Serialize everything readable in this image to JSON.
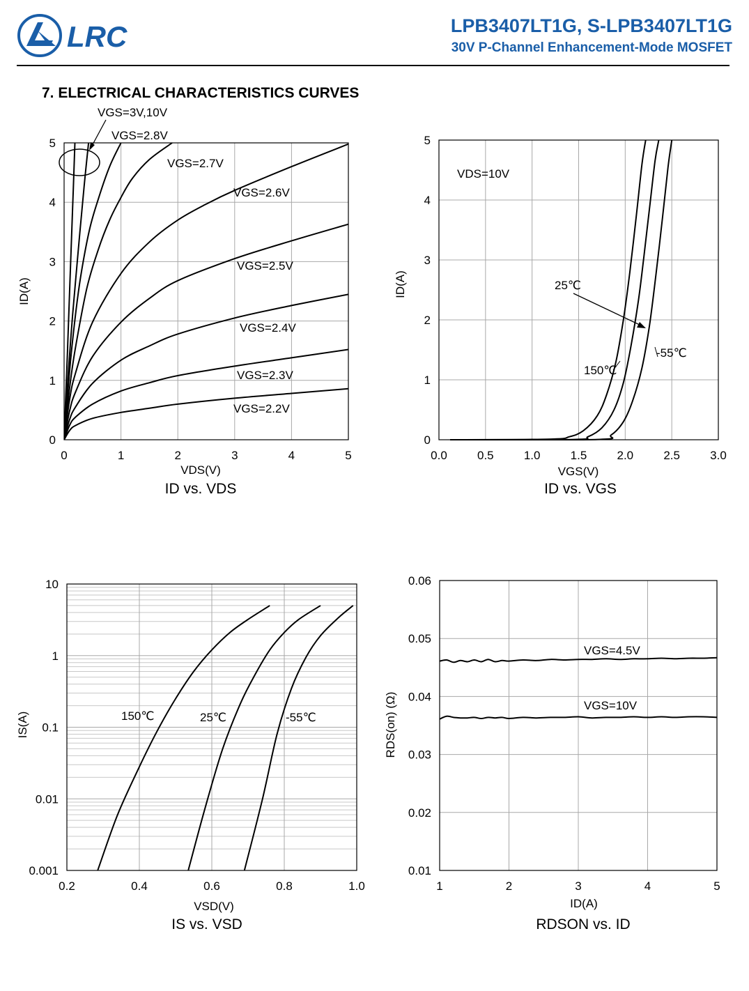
{
  "header": {
    "logo_text": "LRC",
    "part_numbers": "LPB3407LT1G, S-LPB3407LT1G",
    "subtitle": "30V P-Channel Enhancement-Mode MOSFET",
    "brand_color": "#1a5ea8"
  },
  "section_title": "7. ELECTRICAL CHARACTERISTICS CURVES",
  "chart_data": [
    {
      "id": "id_vds",
      "type": "line",
      "caption": "ID vs. VDS",
      "xlabel": "VDS(V)",
      "ylabel": "ID(A)",
      "xlim": [
        0,
        5
      ],
      "ylim": [
        0,
        5
      ],
      "xticks": [
        0,
        1,
        2,
        3,
        4,
        5
      ],
      "xtick_labels": [
        "0",
        "1",
        "2",
        "3",
        "4",
        "5"
      ],
      "yticks": [
        0,
        1,
        2,
        3,
        4,
        5
      ],
      "ytick_labels": [
        "0",
        "1",
        "2",
        "3",
        "4",
        "5"
      ],
      "grid": true,
      "legend": "inline labels",
      "circle_annotation_label": "VGS=3V,10V",
      "series": [
        {
          "name": "VGS=2.2V",
          "x": [
            0,
            0.1,
            0.2,
            0.5,
            1,
            1.5,
            2,
            3,
            4,
            5
          ],
          "y": [
            0,
            0.16,
            0.24,
            0.36,
            0.46,
            0.53,
            0.6,
            0.7,
            0.78,
            0.86
          ]
        },
        {
          "name": "VGS=2.3V",
          "x": [
            0,
            0.1,
            0.2,
            0.5,
            1,
            1.5,
            2,
            3,
            4,
            5
          ],
          "y": [
            0,
            0.25,
            0.38,
            0.6,
            0.82,
            0.96,
            1.08,
            1.24,
            1.38,
            1.52
          ]
        },
        {
          "name": "VGS=2.4V",
          "x": [
            0,
            0.1,
            0.2,
            0.5,
            1,
            1.5,
            2,
            3,
            4,
            5
          ],
          "y": [
            0,
            0.35,
            0.55,
            0.95,
            1.34,
            1.58,
            1.78,
            2.05,
            2.26,
            2.45
          ]
        },
        {
          "name": "VGS=2.5V",
          "x": [
            0,
            0.1,
            0.2,
            0.5,
            1,
            1.5,
            2,
            3,
            4,
            5
          ],
          "y": [
            0,
            0.5,
            0.8,
            1.4,
            1.98,
            2.38,
            2.68,
            3.05,
            3.35,
            3.63
          ]
        },
        {
          "name": "VGS=2.6V",
          "x": [
            0,
            0.1,
            0.2,
            0.5,
            1,
            1.5,
            2,
            2.5,
            3,
            4,
            5
          ],
          "y": [
            0,
            0.7,
            1.12,
            1.98,
            2.8,
            3.33,
            3.7,
            3.97,
            4.2,
            4.6,
            4.98
          ]
        },
        {
          "name": "VGS=2.7V",
          "x": [
            0,
            0.1,
            0.2,
            0.4,
            0.6,
            0.8,
            1.0,
            1.2,
            1.5,
            1.9
          ],
          "y": [
            0,
            0.9,
            1.55,
            2.55,
            3.2,
            3.7,
            4.08,
            4.4,
            4.72,
            5.0
          ]
        },
        {
          "name": "VGS=2.8V",
          "x": [
            0,
            0.1,
            0.2,
            0.3,
            0.45,
            0.6,
            0.8,
            1.0
          ],
          "y": [
            0,
            1.2,
            2.1,
            2.8,
            3.55,
            4.05,
            4.6,
            5.0
          ]
        },
        {
          "name": "VGS=3V",
          "x": [
            0,
            0.08,
            0.15,
            0.25,
            0.35,
            0.43
          ],
          "y": [
            0,
            1.2,
            2.1,
            3.2,
            4.25,
            5.0
          ]
        },
        {
          "name": "VGS=10V",
          "x": [
            0,
            0.06,
            0.1,
            0.15,
            0.19
          ],
          "y": [
            0,
            1.5,
            2.6,
            3.9,
            5.0
          ]
        }
      ]
    },
    {
      "id": "id_vgs",
      "type": "line",
      "caption": "ID vs. VGS",
      "xlabel": "VGS(V)",
      "ylabel": "ID(A)",
      "xlim": [
        0,
        3
      ],
      "ylim": [
        0,
        5
      ],
      "xticks": [
        0,
        0.5,
        1,
        1.5,
        2,
        2.5,
        3
      ],
      "xtick_labels": [
        "0.0",
        "0.5",
        "1.0",
        "1.5",
        "2.0",
        "2.5",
        "3.0"
      ],
      "yticks": [
        0,
        1,
        2,
        3,
        4,
        5
      ],
      "ytick_labels": [
        "0",
        "1",
        "2",
        "3",
        "4",
        "5"
      ],
      "grid": true,
      "legend": "inline labels",
      "annotation": "VDS=10V",
      "series": [
        {
          "name": "150℃",
          "x": [
            0.12,
            1.2,
            1.4,
            1.55,
            1.7,
            1.8,
            1.9,
            1.98,
            2.05,
            2.12,
            2.18,
            2.22
          ],
          "y": [
            0,
            0.01,
            0.05,
            0.15,
            0.4,
            0.75,
            1.3,
            2.0,
            2.8,
            3.75,
            4.6,
            5.0
          ]
        },
        {
          "name": "25℃",
          "x": [
            0.12,
            1.45,
            1.6,
            1.75,
            1.88,
            1.98,
            2.06,
            2.14,
            2.2,
            2.26,
            2.32,
            2.36
          ],
          "y": [
            0,
            0.005,
            0.05,
            0.2,
            0.5,
            0.95,
            1.55,
            2.3,
            3.05,
            3.85,
            4.65,
            5.0
          ]
        },
        {
          "name": "-55℃",
          "x": [
            0.12,
            1.7,
            1.85,
            1.98,
            2.08,
            2.18,
            2.26,
            2.33,
            2.4,
            2.46,
            2.5
          ],
          "y": [
            0,
            0.005,
            0.08,
            0.3,
            0.65,
            1.2,
            1.9,
            2.75,
            3.7,
            4.55,
            5.0
          ]
        }
      ]
    },
    {
      "id": "is_vsd",
      "type": "line",
      "caption": "IS vs. VSD",
      "xlabel": "VSD(V)",
      "ylabel": "IS(A)",
      "xlim": [
        0.2,
        1.0
      ],
      "ylim": [
        0.001,
        10
      ],
      "yscale": "log",
      "xticks": [
        0.2,
        0.4,
        0.6,
        0.8,
        1.0
      ],
      "xtick_labels": [
        "0.2",
        "0.4",
        "0.6",
        "0.8",
        "1.0"
      ],
      "yticks": [
        0.001,
        0.01,
        0.1,
        1,
        10
      ],
      "ytick_labels": [
        "0.001",
        "0.01",
        "0.1",
        "1",
        "10"
      ],
      "grid": true,
      "legend": "inline labels",
      "series": [
        {
          "name": "150℃",
          "x": [
            0.285,
            0.34,
            0.4,
            0.45,
            0.5,
            0.55,
            0.6,
            0.65,
            0.7,
            0.76
          ],
          "y": [
            0.001,
            0.006,
            0.028,
            0.09,
            0.25,
            0.6,
            1.2,
            2.1,
            3.2,
            5.0
          ]
        },
        {
          "name": "25℃",
          "x": [
            0.535,
            0.58,
            0.63,
            0.68,
            0.72,
            0.76,
            0.8,
            0.84,
            0.9
          ],
          "y": [
            0.001,
            0.007,
            0.05,
            0.22,
            0.55,
            1.2,
            2.1,
            3.2,
            5.0
          ]
        },
        {
          "name": "-55℃",
          "x": [
            0.69,
            0.74,
            0.78,
            0.82,
            0.86,
            0.9,
            0.95,
            0.99
          ],
          "y": [
            0.001,
            0.01,
            0.08,
            0.35,
            0.95,
            1.9,
            3.4,
            5.0
          ]
        }
      ]
    },
    {
      "id": "rdson_id",
      "type": "line",
      "caption": "RDSON vs. ID",
      "xlabel": "ID(A)",
      "ylabel": "RDS(on) (Ω)",
      "xlim": [
        1,
        5
      ],
      "ylim": [
        0.01,
        0.06
      ],
      "xticks": [
        1,
        2,
        3,
        4,
        5
      ],
      "xtick_labels": [
        "1",
        "2",
        "3",
        "4",
        "5"
      ],
      "yticks": [
        0.01,
        0.02,
        0.03,
        0.04,
        0.05,
        0.06
      ],
      "ytick_labels": [
        "0.01",
        "0.02",
        "0.03",
        "0.04",
        "0.05",
        "0.06"
      ],
      "grid": true,
      "legend": "inline labels",
      "series": [
        {
          "name": "VGS=4.5V",
          "x": [
            1.0,
            1.1,
            1.2,
            1.3,
            1.4,
            1.5,
            1.6,
            1.7,
            1.8,
            1.9,
            2.0,
            2.2,
            2.4,
            2.6,
            2.8,
            3.0,
            3.2,
            3.4,
            3.6,
            3.8,
            4.0,
            4.2,
            4.4,
            4.6,
            4.8,
            5.0
          ],
          "y": [
            0.0461,
            0.0463,
            0.0459,
            0.0462,
            0.046,
            0.0463,
            0.046,
            0.0464,
            0.046,
            0.0462,
            0.0461,
            0.0463,
            0.0462,
            0.0464,
            0.0463,
            0.0464,
            0.0464,
            0.0465,
            0.0464,
            0.0465,
            0.0465,
            0.0466,
            0.0465,
            0.0466,
            0.0466,
            0.0467
          ]
        },
        {
          "name": "VGS=10V",
          "x": [
            1.0,
            1.1,
            1.2,
            1.3,
            1.4,
            1.5,
            1.6,
            1.7,
            1.8,
            1.9,
            2.0,
            2.2,
            2.4,
            2.6,
            2.8,
            3.0,
            3.2,
            3.4,
            3.6,
            3.8,
            4.0,
            4.2,
            4.4,
            4.6,
            4.8,
            5.0
          ],
          "y": [
            0.0361,
            0.0366,
            0.0364,
            0.0363,
            0.0363,
            0.0364,
            0.0362,
            0.0364,
            0.0363,
            0.0364,
            0.0362,
            0.0364,
            0.0363,
            0.0364,
            0.0364,
            0.0365,
            0.0363,
            0.0364,
            0.0364,
            0.0365,
            0.0364,
            0.0365,
            0.0364,
            0.0365,
            0.0365,
            0.0364
          ]
        }
      ]
    }
  ]
}
